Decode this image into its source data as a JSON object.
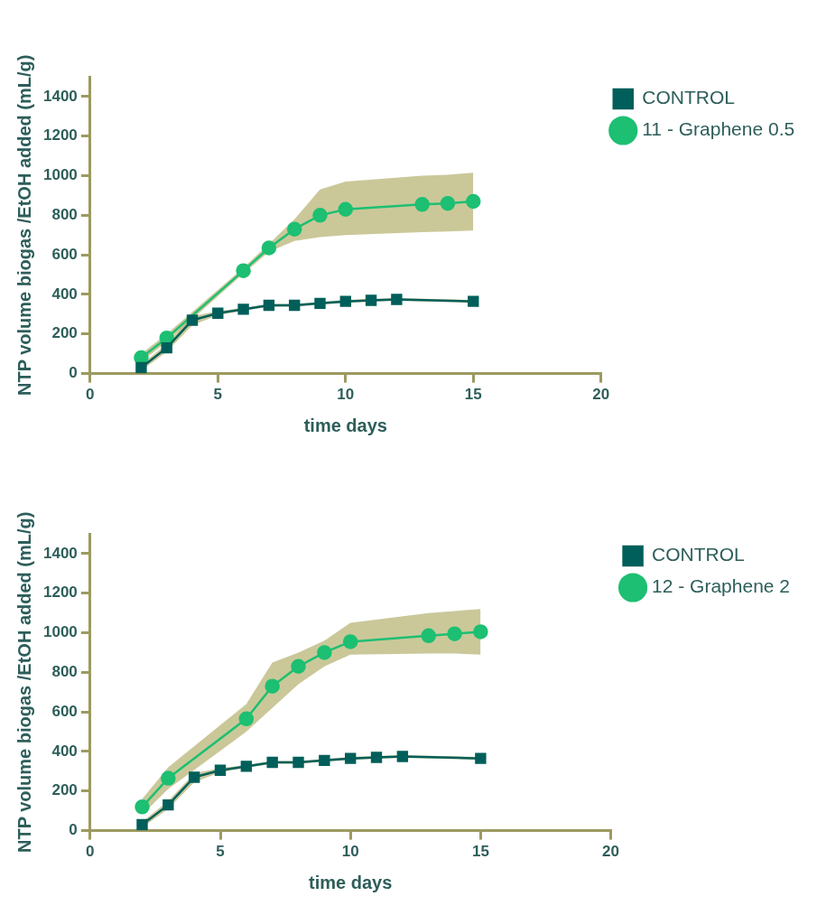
{
  "chart_data": [
    {
      "type": "line",
      "xlabel": "time days",
      "ylabel": "NTP volume biogas /EtOH added (mL/g)",
      "xlim": [
        0,
        20
      ],
      "ylim": [
        0,
        1500
      ],
      "xticks": [
        0,
        5,
        10,
        15,
        20
      ],
      "yticks": [
        0,
        200,
        400,
        600,
        800,
        1000,
        1200,
        1400
      ],
      "grid": false,
      "legend": "right",
      "line_style": "solid",
      "series": [
        {
          "name": "CONTROL",
          "color": "#005f5a",
          "marker": "square",
          "x": [
            2,
            3,
            4,
            5,
            6,
            7,
            8,
            9,
            10,
            11,
            12,
            15
          ],
          "values": [
            30,
            130,
            270,
            305,
            325,
            345,
            345,
            355,
            365,
            370,
            375,
            365
          ],
          "lower": [
            15,
            110,
            245,
            295,
            318,
            338,
            338,
            348,
            358,
            363,
            368,
            358
          ],
          "upper": [
            45,
            150,
            290,
            315,
            332,
            352,
            352,
            362,
            372,
            377,
            382,
            372
          ]
        },
        {
          "name": "11 - Graphene 0.5",
          "color": "#1dbf72",
          "marker": "circle",
          "x": [
            2,
            3,
            6,
            7,
            8,
            9,
            10,
            13,
            14,
            15
          ],
          "values": [
            80,
            180,
            520,
            635,
            730,
            800,
            830,
            855,
            860,
            870
          ],
          "lower": [
            60,
            160,
            505,
            615,
            670,
            690,
            700,
            715,
            718,
            723
          ],
          "upper": [
            100,
            200,
            535,
            655,
            780,
            930,
            970,
            1000,
            1005,
            1015
          ]
        }
      ]
    },
    {
      "type": "line",
      "xlabel": "time days",
      "ylabel": "NTP volume biogas /EtOH added (mL/g)",
      "xlim": [
        0,
        20
      ],
      "ylim": [
        0,
        1500
      ],
      "xticks": [
        0,
        5,
        10,
        15,
        20
      ],
      "yticks": [
        0,
        200,
        400,
        600,
        800,
        1000,
        1200,
        1400
      ],
      "grid": false,
      "legend": "right",
      "line_style": "solid",
      "series": [
        {
          "name": "CONTROL",
          "color": "#005f5a",
          "marker": "square",
          "x": [
            2,
            3,
            4,
            5,
            6,
            7,
            8,
            9,
            10,
            11,
            12,
            15
          ],
          "values": [
            30,
            130,
            270,
            305,
            325,
            345,
            345,
            355,
            365,
            370,
            375,
            365
          ],
          "lower": [
            15,
            110,
            245,
            295,
            318,
            338,
            338,
            348,
            358,
            363,
            368,
            358
          ],
          "upper": [
            45,
            150,
            290,
            315,
            332,
            352,
            352,
            362,
            372,
            377,
            382,
            372
          ]
        },
        {
          "name": "12 - Graphene 2",
          "color": "#1dbf72",
          "marker": "circle",
          "x": [
            2,
            3,
            6,
            7,
            8,
            9,
            10,
            13,
            14,
            15
          ],
          "values": [
            120,
            265,
            565,
            730,
            830,
            900,
            955,
            985,
            995,
            1005
          ],
          "lower": [
            80,
            210,
            500,
            620,
            740,
            830,
            890,
            895,
            895,
            890
          ],
          "upper": [
            160,
            320,
            640,
            850,
            900,
            960,
            1050,
            1100,
            1110,
            1120
          ]
        }
      ]
    }
  ]
}
